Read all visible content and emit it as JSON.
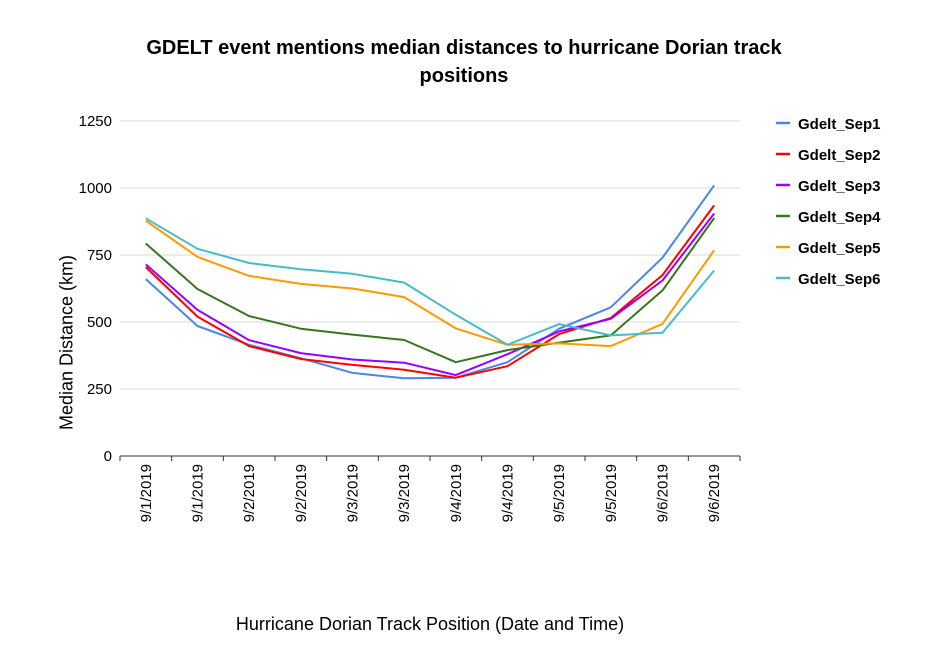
{
  "chart_data": {
    "type": "line",
    "title_lines": [
      "GDELT event mentions median distances to hurricane Dorian track",
      "positions"
    ],
    "xlabel": "Hurricane Dorian Track Position (Date and Time)",
    "ylabel": "Median Distance (km)",
    "categories": [
      "9/1/2019",
      "9/1/2019",
      "9/2/2019",
      "9/2/2019",
      "9/3/2019",
      "9/3/2019",
      "9/4/2019",
      "9/4/2019",
      "9/5/2019",
      "9/5/2019",
      "9/6/2019",
      "9/6/2019"
    ],
    "ylim": [
      0,
      1250
    ],
    "yticks": [
      0,
      250,
      500,
      750,
      1000,
      1250
    ],
    "grid": true,
    "legend_position": "right",
    "series": [
      {
        "name": "Gdelt_Sep1",
        "color": "#4a86e8",
        "values": [
          660,
          485,
          415,
          365,
          310,
          290,
          292,
          350,
          475,
          555,
          740,
          1010
        ]
      },
      {
        "name": "Gdelt_Sep2",
        "color": "#ff0000",
        "values": [
          705,
          520,
          410,
          362,
          340,
          322,
          292,
          335,
          455,
          515,
          675,
          935
        ]
      },
      {
        "name": "Gdelt_Sep3",
        "color": "#9900ff",
        "values": [
          715,
          545,
          432,
          384,
          360,
          348,
          302,
          380,
          465,
          512,
          655,
          905
        ]
      },
      {
        "name": "Gdelt_Sep4",
        "color": "#38761d",
        "values": [
          793,
          623,
          522,
          475,
          453,
          433,
          350,
          395,
          423,
          450,
          618,
          888
        ]
      },
      {
        "name": "Gdelt_Sep5",
        "color": "#ff9900",
        "values": [
          878,
          743,
          672,
          642,
          625,
          593,
          476,
          415,
          420,
          410,
          493,
          768
        ]
      },
      {
        "name": "Gdelt_Sep6",
        "color": "#46bdc6",
        "values": [
          887,
          773,
          720,
          697,
          680,
          647,
          527,
          415,
          492,
          450,
          460,
          692
        ]
      }
    ]
  }
}
